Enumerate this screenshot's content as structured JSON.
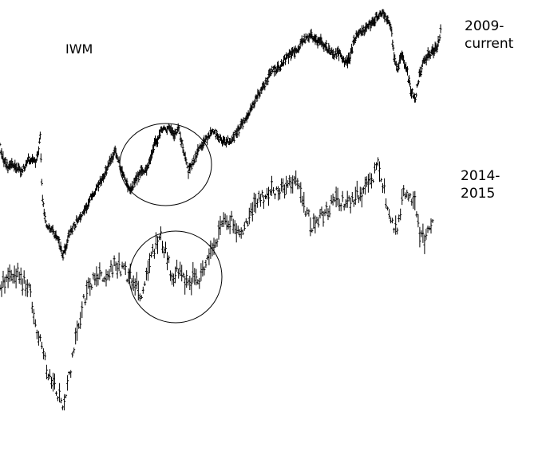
{
  "labels": {
    "ticker": "IWM",
    "top_period_line1": "2009-",
    "top_period_line2": "current",
    "bottom_period_line1": "2014-",
    "bottom_period_line2": "2015"
  },
  "colors": {
    "series": "#000000",
    "background": "#ffffff"
  },
  "chart_data": [
    {
      "type": "line",
      "title": "",
      "series": [
        {
          "name": "2009-current",
          "style": "bars",
          "bar_count": 560
        }
      ],
      "x": [
        0,
        8,
        16,
        26,
        36,
        44,
        49,
        50,
        53,
        58,
        66,
        72,
        79,
        88,
        98,
        108,
        118,
        128,
        138,
        145,
        150,
        156,
        163,
        170,
        178,
        186,
        194,
        202,
        210,
        218,
        224,
        228,
        232,
        236,
        242,
        248,
        255,
        262,
        268,
        275,
        282,
        290,
        300,
        310,
        320,
        330,
        340,
        350,
        360,
        370,
        380,
        390,
        398,
        404,
        410,
        418,
        426,
        432,
        438,
        444,
        452,
        460,
        468,
        474,
        480,
        486,
        490,
        494,
        498,
        504,
        510,
        515,
        520,
        524,
        530,
        536,
        542,
        548,
        552
      ],
      "values": [
        185,
        210,
        205,
        215,
        200,
        205,
        190,
        160,
        250,
        280,
        290,
        300,
        320,
        290,
        275,
        260,
        240,
        225,
        200,
        190,
        205,
        225,
        240,
        225,
        215,
        210,
        180,
        165,
        160,
        170,
        160,
        180,
        200,
        215,
        205,
        190,
        180,
        170,
        165,
        175,
        180,
        175,
        160,
        145,
        125,
        110,
        90,
        85,
        70,
        65,
        50,
        45,
        50,
        55,
        60,
        70,
        65,
        80,
        75,
        50,
        40,
        35,
        25,
        20,
        15,
        25,
        35,
        75,
        85,
        70,
        90,
        115,
        125,
        100,
        80,
        70,
        65,
        60,
        40
      ],
      "circle_annotation": {
        "x_range": [
          150,
          265
        ],
        "values_range": [
          155,
          258
        ]
      },
      "ylim": [
        0,
        576
      ]
    },
    {
      "type": "line",
      "title": "",
      "series": [
        {
          "name": "2014-2015",
          "style": "bars",
          "bar_count": 270
        }
      ],
      "x": [
        0,
        10,
        20,
        30,
        38,
        44,
        50,
        58,
        66,
        74,
        80,
        86,
        92,
        98,
        104,
        112,
        120,
        128,
        136,
        144,
        152,
        160,
        166,
        172,
        178,
        184,
        190,
        196,
        202,
        208,
        214,
        220,
        226,
        232,
        238,
        244,
        250,
        256,
        262,
        270,
        280,
        290,
        300,
        310,
        320,
        330,
        340,
        350,
        360,
        370,
        380,
        388,
        396,
        404,
        412,
        420,
        430,
        440,
        450,
        460,
        468,
        474,
        480,
        486,
        492,
        498,
        504,
        512,
        520,
        526,
        532,
        538,
        542
      ],
      "values": [
        360,
        350,
        345,
        355,
        365,
        400,
        430,
        460,
        480,
        500,
        505,
        480,
        440,
        410,
        380,
        360,
        350,
        345,
        340,
        330,
        335,
        345,
        350,
        360,
        375,
        340,
        320,
        305,
        300,
        320,
        340,
        345,
        330,
        355,
        360,
        340,
        355,
        335,
        320,
        300,
        280,
        275,
        290,
        280,
        255,
        245,
        240,
        235,
        230,
        225,
        250,
        280,
        285,
        270,
        260,
        250,
        255,
        250,
        245,
        235,
        220,
        200,
        230,
        260,
        280,
        285,
        245,
        240,
        255,
        290,
        305,
        280,
        275
      ],
      "circle_annotation": {
        "x_range": [
          162,
          278
        ],
        "values_range": [
          290,
          405
        ]
      },
      "ylim": [
        0,
        576
      ]
    }
  ]
}
